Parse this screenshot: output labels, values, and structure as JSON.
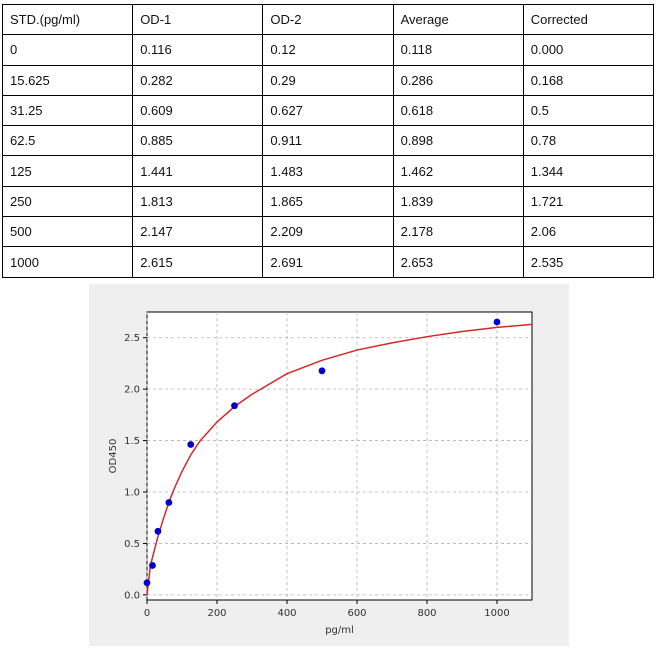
{
  "table": {
    "headers": [
      "STD.(pg/ml)",
      "OD-1",
      "OD-2",
      "Average",
      "Corrected"
    ],
    "rows": [
      [
        "0",
        "0.116",
        "0.12",
        "0.118",
        "0.000"
      ],
      [
        "15.625",
        "0.282",
        "0.29",
        "0.286",
        "0.168"
      ],
      [
        "31.25",
        "0.609",
        "0.627",
        "0.618",
        "0.5"
      ],
      [
        "62.5",
        "0.885",
        "0.911",
        "0.898",
        "0.78"
      ],
      [
        "125",
        "1.441",
        "1.483",
        "1.462",
        "1.344"
      ],
      [
        "250",
        "1.813",
        "1.865",
        "1.839",
        "1.721"
      ],
      [
        "500",
        "2.147",
        "2.209",
        "2.178",
        "2.06"
      ],
      [
        "1000",
        "2.615",
        "2.691",
        "2.653",
        "2.535"
      ]
    ]
  },
  "chart_data": {
    "type": "scatter",
    "xlabel": "pg/ml",
    "ylabel": "OD450",
    "xlim": [
      0,
      1100
    ],
    "ylim": [
      -0.05,
      2.75
    ],
    "xticks": [
      0,
      200,
      400,
      600,
      800,
      1000
    ],
    "yticks": [
      0.0,
      0.5,
      1.0,
      1.5,
      2.0,
      2.5
    ],
    "xtick_labels": [
      "0",
      "200",
      "400",
      "600",
      "800",
      "1000"
    ],
    "ytick_labels": [
      "0.0",
      "0.5",
      "1.0",
      "1.5",
      "2.0",
      "2.5"
    ],
    "grid": true,
    "points": {
      "x": [
        0,
        15.625,
        31.25,
        62.5,
        125,
        250,
        500,
        1000
      ],
      "y": [
        0.118,
        0.286,
        0.618,
        0.898,
        1.462,
        1.839,
        2.178,
        2.653
      ],
      "color": "#0000cc"
    },
    "fit_curve": {
      "color": "#d62728",
      "points": [
        [
          0,
          0.0
        ],
        [
          10,
          0.29
        ],
        [
          20,
          0.42
        ],
        [
          30,
          0.55
        ],
        [
          45,
          0.72
        ],
        [
          62.5,
          0.9
        ],
        [
          80,
          1.05
        ],
        [
          100,
          1.2
        ],
        [
          125,
          1.36
        ],
        [
          150,
          1.49
        ],
        [
          200,
          1.68
        ],
        [
          250,
          1.83
        ],
        [
          300,
          1.95
        ],
        [
          400,
          2.15
        ],
        [
          500,
          2.28
        ],
        [
          600,
          2.38
        ],
        [
          700,
          2.45
        ],
        [
          800,
          2.51
        ],
        [
          900,
          2.56
        ],
        [
          1000,
          2.6
        ],
        [
          1100,
          2.63
        ]
      ]
    }
  }
}
